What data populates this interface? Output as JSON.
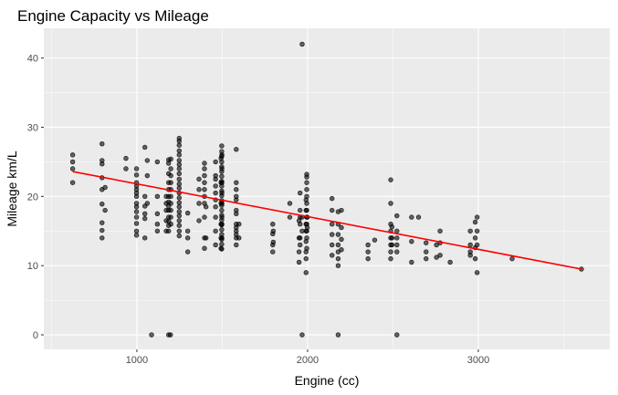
{
  "chart_data": {
    "type": "scatter",
    "title": "Engine Capacity vs Mileage",
    "xlabel": "Engine (cc)",
    "ylabel": "Mileage km/L",
    "xlim": [
      455,
      3770
    ],
    "ylim": [
      -2.1,
      44.3
    ],
    "x_ticks": [
      1000,
      2000,
      3000
    ],
    "x_tick_labels": [
      "1000",
      "2000",
      "3000"
    ],
    "y_ticks": [
      0,
      10,
      20,
      30,
      40
    ],
    "y_tick_labels": [
      "0",
      "10",
      "20",
      "30",
      "40"
    ],
    "grid": true,
    "legend": "none",
    "colors": {
      "panel": "#ebebeb",
      "grid_major": "#ffffff",
      "point": "#000000",
      "trend": "#ff0000",
      "tick_text": "#4d4d4d"
    },
    "trend_line": {
      "x": [
        624,
        3604
      ],
      "y": [
        23.6,
        9.5
      ]
    },
    "series": [
      {
        "values": [
          [
            624,
            26.0
          ],
          [
            624,
            25.0
          ],
          [
            624,
            24.0
          ],
          [
            624,
            22.0
          ],
          [
            796,
            27.6
          ],
          [
            796,
            25.2
          ],
          [
            796,
            24.7
          ],
          [
            796,
            22.7
          ],
          [
            796,
            21.0
          ],
          [
            796,
            18.9
          ],
          [
            796,
            16.2
          ],
          [
            796,
            15.1
          ],
          [
            796,
            14.0
          ],
          [
            814,
            21.3
          ],
          [
            814,
            18.0
          ],
          [
            936,
            25.5
          ],
          [
            936,
            24.0
          ],
          [
            998,
            24.0
          ],
          [
            998,
            23.1
          ],
          [
            998,
            22.0
          ],
          [
            998,
            21.5
          ],
          [
            998,
            21.0
          ],
          [
            998,
            20.5
          ],
          [
            998,
            20.0
          ],
          [
            998,
            19.0
          ],
          [
            998,
            18.5
          ],
          [
            998,
            17.8
          ],
          [
            998,
            17.0
          ],
          [
            998,
            16.1
          ],
          [
            998,
            15.0
          ],
          [
            998,
            14.4
          ],
          [
            1047,
            27.1
          ],
          [
            1047,
            20.0
          ],
          [
            1047,
            18.6
          ],
          [
            1047,
            17.5
          ],
          [
            1047,
            16.8
          ],
          [
            1047,
            14.0
          ],
          [
            1061,
            25.2
          ],
          [
            1061,
            23.0
          ],
          [
            1061,
            19.0
          ],
          [
            1086,
            0.0
          ],
          [
            1120,
            25.0
          ],
          [
            1120,
            20.0
          ],
          [
            1120,
            17.5
          ],
          [
            1120,
            16.0
          ],
          [
            1120,
            15.0
          ],
          [
            1172,
            20.0
          ],
          [
            1172,
            19.0
          ],
          [
            1172,
            18.0
          ],
          [
            1172,
            16.5
          ],
          [
            1172,
            15.0
          ],
          [
            1186,
            25.3
          ],
          [
            1186,
            24.8
          ],
          [
            1186,
            23.3
          ],
          [
            1186,
            22.0
          ],
          [
            1186,
            21.0
          ],
          [
            1186,
            20.0
          ],
          [
            1186,
            19.2
          ],
          [
            1186,
            18.6
          ],
          [
            1186,
            18.0
          ],
          [
            1186,
            17.0
          ],
          [
            1186,
            16.4
          ],
          [
            1186,
            15.8
          ],
          [
            1186,
            15.0
          ],
          [
            1186,
            0.0
          ],
          [
            1197,
            0.0
          ],
          [
            1199,
            25.4
          ],
          [
            1199,
            24.0
          ],
          [
            1199,
            23.0
          ],
          [
            1199,
            22.0
          ],
          [
            1199,
            21.0
          ],
          [
            1199,
            20.0
          ],
          [
            1199,
            19.0
          ],
          [
            1199,
            18.0
          ],
          [
            1199,
            17.0
          ],
          [
            1199,
            16.0
          ],
          [
            1248,
            28.4
          ],
          [
            1248,
            28.0
          ],
          [
            1248,
            27.4
          ],
          [
            1248,
            26.6
          ],
          [
            1248,
            26.0
          ],
          [
            1248,
            25.2
          ],
          [
            1248,
            24.6
          ],
          [
            1248,
            24.0
          ],
          [
            1248,
            23.3
          ],
          [
            1248,
            22.5
          ],
          [
            1248,
            21.8
          ],
          [
            1248,
            21.2
          ],
          [
            1248,
            20.5
          ],
          [
            1248,
            19.8
          ],
          [
            1248,
            19.1
          ],
          [
            1248,
            18.5
          ],
          [
            1248,
            17.8
          ],
          [
            1248,
            17.2
          ],
          [
            1248,
            16.5
          ],
          [
            1248,
            15.8
          ],
          [
            1248,
            15.0
          ],
          [
            1248,
            14.3
          ],
          [
            1298,
            17.6
          ],
          [
            1298,
            15.0
          ],
          [
            1298,
            14.0
          ],
          [
            1298,
            12.0
          ],
          [
            1364,
            22.5
          ],
          [
            1364,
            21.0
          ],
          [
            1364,
            19.0
          ],
          [
            1364,
            16.5
          ],
          [
            1396,
            24.8
          ],
          [
            1396,
            24.0
          ],
          [
            1396,
            23.0
          ],
          [
            1396,
            22.0
          ],
          [
            1396,
            21.0
          ],
          [
            1396,
            20.0
          ],
          [
            1396,
            19.0
          ],
          [
            1396,
            17.0
          ],
          [
            1396,
            14.0
          ],
          [
            1396,
            12.5
          ],
          [
            1405,
            18.5
          ],
          [
            1405,
            14.0
          ],
          [
            1461,
            25.0
          ],
          [
            1461,
            23.0
          ],
          [
            1461,
            22.5
          ],
          [
            1461,
            21.5
          ],
          [
            1461,
            20.5
          ],
          [
            1461,
            19.5
          ],
          [
            1461,
            18.5
          ],
          [
            1461,
            17.0
          ],
          [
            1461,
            15.0
          ],
          [
            1461,
            13.0
          ],
          [
            1493,
            25.5
          ],
          [
            1493,
            22.0
          ],
          [
            1493,
            19.0
          ],
          [
            1493,
            16.0
          ],
          [
            1493,
            14.0
          ],
          [
            1493,
            12.5
          ],
          [
            1497,
            27.3
          ],
          [
            1497,
            26.5
          ],
          [
            1497,
            25.8
          ],
          [
            1497,
            25.0
          ],
          [
            1497,
            24.3
          ],
          [
            1497,
            23.6
          ],
          [
            1497,
            22.9
          ],
          [
            1497,
            22.2
          ],
          [
            1497,
            21.5
          ],
          [
            1497,
            20.8
          ],
          [
            1497,
            20.1
          ],
          [
            1497,
            19.4
          ],
          [
            1497,
            18.7
          ],
          [
            1497,
            18.0
          ],
          [
            1497,
            17.3
          ],
          [
            1497,
            16.6
          ],
          [
            1497,
            15.9
          ],
          [
            1497,
            15.2
          ],
          [
            1497,
            14.5
          ],
          [
            1497,
            13.8
          ],
          [
            1497,
            13.1
          ],
          [
            1497,
            12.4
          ],
          [
            1498,
            26.0
          ],
          [
            1498,
            24.0
          ],
          [
            1498,
            22.0
          ],
          [
            1498,
            20.5
          ],
          [
            1498,
            19.0
          ],
          [
            1498,
            17.0
          ],
          [
            1498,
            16.0
          ],
          [
            1498,
            14.0
          ],
          [
            1582,
            26.8
          ],
          [
            1582,
            22.0
          ],
          [
            1582,
            21.0
          ],
          [
            1582,
            20.0
          ],
          [
            1582,
            19.5
          ],
          [
            1582,
            18.0
          ],
          [
            1582,
            17.5
          ],
          [
            1582,
            16.0
          ],
          [
            1582,
            15.5
          ],
          [
            1582,
            15.0
          ],
          [
            1582,
            14.5
          ],
          [
            1582,
            14.0
          ],
          [
            1582,
            13.0
          ],
          [
            1598,
            16.0
          ],
          [
            1598,
            14.0
          ],
          [
            1796,
            16.0
          ],
          [
            1796,
            14.6
          ],
          [
            1796,
            13.0
          ],
          [
            1796,
            12.0
          ],
          [
            1799,
            15.0
          ],
          [
            1799,
            13.4
          ],
          [
            1896,
            19.0
          ],
          [
            1896,
            17.0
          ],
          [
            1950,
            16.5
          ],
          [
            1950,
            14.0
          ],
          [
            1950,
            12.0
          ],
          [
            1950,
            10.5
          ],
          [
            1956,
            20.5
          ],
          [
            1956,
            18.0
          ],
          [
            1956,
            17.0
          ],
          [
            1956,
            16.0
          ],
          [
            1956,
            14.0
          ],
          [
            1956,
            13.0
          ],
          [
            1968,
            42.0
          ],
          [
            1968,
            17.0
          ],
          [
            1968,
            15.0
          ],
          [
            1968,
            0.0
          ],
          [
            1991,
            19.5
          ],
          [
            1991,
            18.0
          ],
          [
            1991,
            16.0
          ],
          [
            1991,
            15.0
          ],
          [
            1991,
            13.5
          ],
          [
            1991,
            12.0
          ],
          [
            1991,
            11.0
          ],
          [
            1991,
            9.0
          ],
          [
            1995,
            23.2
          ],
          [
            1995,
            22.8
          ],
          [
            1995,
            22.0
          ],
          [
            1995,
            21.0
          ],
          [
            1995,
            20.0
          ],
          [
            1995,
            19.0
          ],
          [
            1995,
            18.0
          ],
          [
            1995,
            17.0
          ],
          [
            1995,
            16.0
          ],
          [
            1995,
            15.0
          ],
          [
            1995,
            14.0
          ],
          [
            1995,
            12.5
          ],
          [
            1998,
            17.0
          ],
          [
            1998,
            15.5
          ],
          [
            2143,
            19.7
          ],
          [
            2143,
            18.0
          ],
          [
            2143,
            16.0
          ],
          [
            2143,
            14.5
          ],
          [
            2143,
            13.0
          ],
          [
            2143,
            11.5
          ],
          [
            2179,
            17.8
          ],
          [
            2179,
            16.0
          ],
          [
            2179,
            14.5
          ],
          [
            2179,
            13.0
          ],
          [
            2179,
            12.0
          ],
          [
            2179,
            11.0
          ],
          [
            2179,
            10.0
          ],
          [
            2179,
            0.0
          ],
          [
            2198,
            18.0
          ],
          [
            2198,
            15.5
          ],
          [
            2198,
            13.8
          ],
          [
            2198,
            12.3
          ],
          [
            2354,
            13.0
          ],
          [
            2354,
            12.0
          ],
          [
            2354,
            11.0
          ],
          [
            2393,
            13.7
          ],
          [
            2487,
            22.4
          ],
          [
            2487,
            19.0
          ],
          [
            2487,
            16.0
          ],
          [
            2487,
            15.0
          ],
          [
            2487,
            14.0
          ],
          [
            2487,
            13.0
          ],
          [
            2487,
            12.0
          ],
          [
            2487,
            11.0
          ],
          [
            2494,
            15.6
          ],
          [
            2494,
            14.0
          ],
          [
            2494,
            13.0
          ],
          [
            2523,
            17.2
          ],
          [
            2523,
            15.0
          ],
          [
            2523,
            14.0
          ],
          [
            2523,
            13.0
          ],
          [
            2523,
            12.0
          ],
          [
            2523,
            0.0
          ],
          [
            2609,
            17.0
          ],
          [
            2609,
            13.5
          ],
          [
            2609,
            10.5
          ],
          [
            2650,
            17.0
          ],
          [
            2694,
            13.3
          ],
          [
            2694,
            12.0
          ],
          [
            2694,
            11.0
          ],
          [
            2755,
            13.0
          ],
          [
            2755,
            11.2
          ],
          [
            2776,
            15.0
          ],
          [
            2776,
            13.3
          ],
          [
            2776,
            11.5
          ],
          [
            2835,
            10.5
          ],
          [
            2953,
            15.0
          ],
          [
            2953,
            13.0
          ],
          [
            2953,
            12.0
          ],
          [
            2953,
            11.5
          ],
          [
            2982,
            16.3
          ],
          [
            2982,
            14.0
          ],
          [
            2982,
            12.6
          ],
          [
            2982,
            11.0
          ],
          [
            2993,
            17.0
          ],
          [
            2993,
            15.0
          ],
          [
            2993,
            13.0
          ],
          [
            2993,
            9.0
          ],
          [
            3198,
            11.0
          ],
          [
            3604,
            9.5
          ]
        ]
      }
    ]
  }
}
